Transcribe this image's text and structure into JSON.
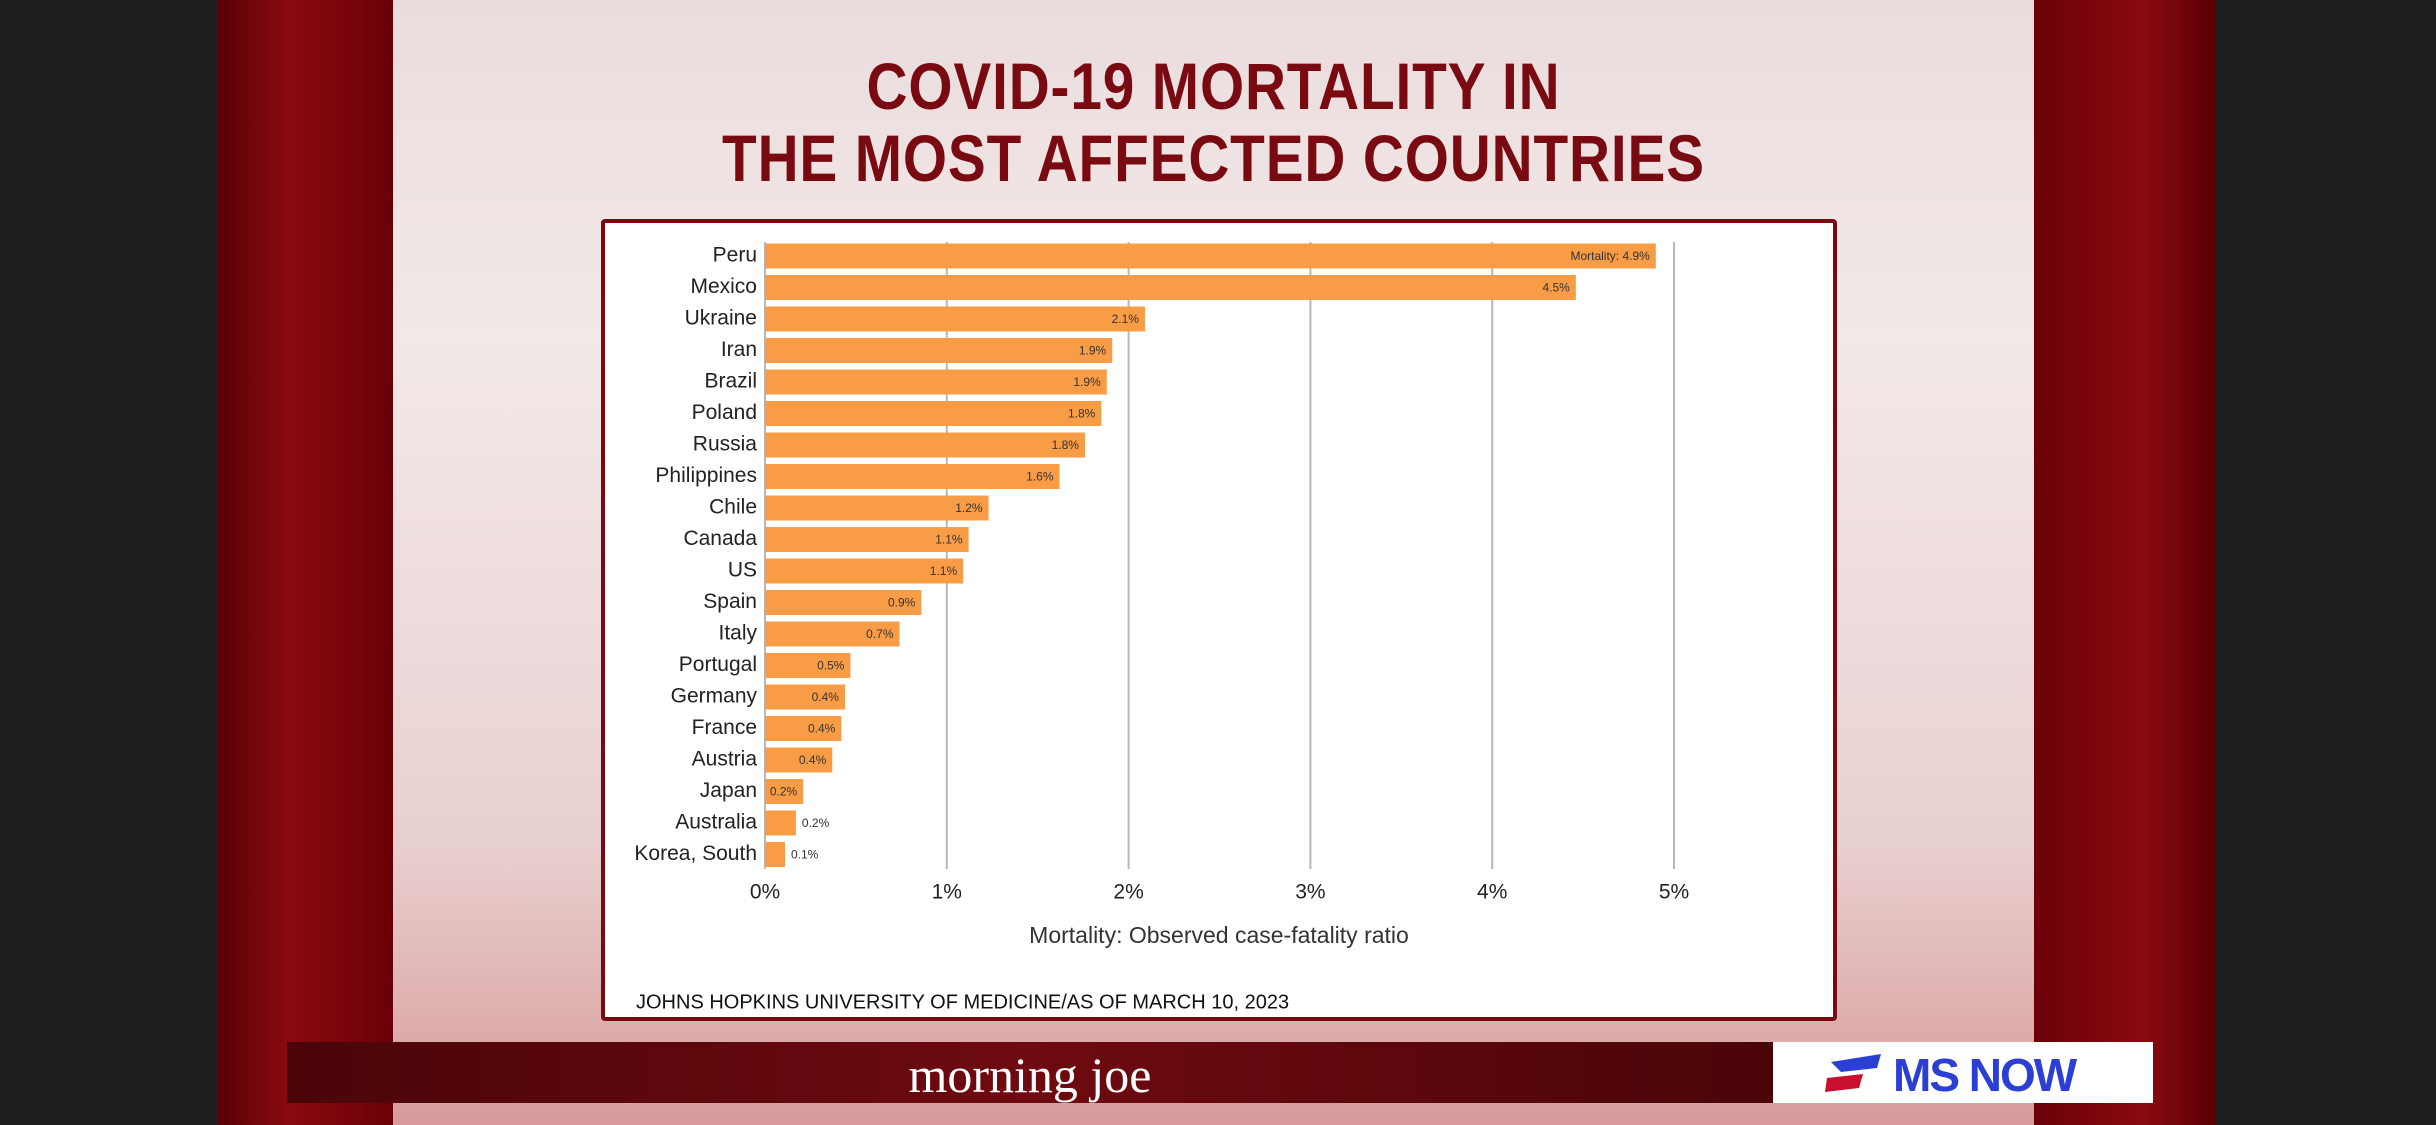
{
  "chart_data": {
    "type": "bar",
    "orientation": "horizontal",
    "title": "COVID-19 MORTALITY IN\nTHE MOST AFFECTED COUNTRIES",
    "x_label": "Mortality: Observed case-fatality ratio",
    "source": "JOHNS HOPKINS UNIVERSITY OF MEDICINE/AS OF MARCH 10, 2023",
    "categories": [
      "Peru",
      "Mexico",
      "Ukraine",
      "Iran",
      "Brazil",
      "Poland",
      "Russia",
      "Philippines",
      "Chile",
      "Canada",
      "US",
      "Spain",
      "Italy",
      "Portugal",
      "Germany",
      "France",
      "Austria",
      "Japan",
      "Australia",
      "Korea, South"
    ],
    "values": [
      4.9,
      4.46,
      2.09,
      1.91,
      1.88,
      1.85,
      1.76,
      1.62,
      1.23,
      1.12,
      1.09,
      0.86,
      0.74,
      0.47,
      0.44,
      0.42,
      0.37,
      0.21,
      0.17,
      0.11
    ],
    "value_labels": [
      "Mortality: 4.9%",
      "4.5%",
      "2.1%",
      "1.9%",
      "1.9%",
      "1.8%",
      "1.8%",
      "1.6%",
      "1.2%",
      "1.1%",
      "1.1%",
      "0.9%",
      "0.7%",
      "0.5%",
      "0.4%",
      "0.4%",
      "0.4%",
      "0.2%",
      "0.2%",
      "0.1%"
    ],
    "color": "#f89c45",
    "xlim": [
      0,
      5
    ],
    "xticks": [
      {
        "value": 0,
        "label": "0%"
      },
      {
        "value": 1,
        "label": "1%"
      },
      {
        "value": 2,
        "label": "2%"
      },
      {
        "value": 3,
        "label": "3%"
      },
      {
        "value": 4,
        "label": "4%"
      },
      {
        "value": 5,
        "label": "5%"
      }
    ],
    "grid": true
  },
  "footer": {
    "show": "morning joe",
    "network": "MS NOW"
  }
}
